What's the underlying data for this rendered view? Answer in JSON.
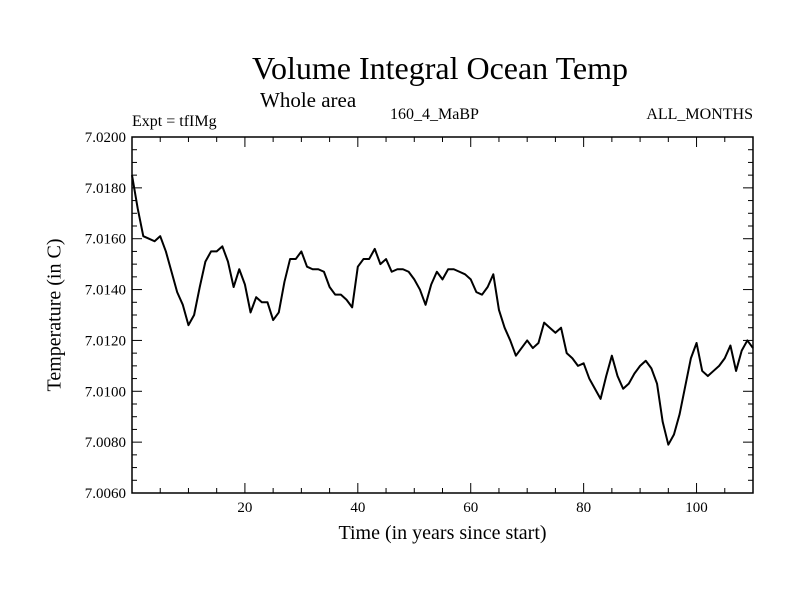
{
  "chart_data": {
    "type": "line",
    "title": "Volume Integral Ocean Temp",
    "subtitle": "Whole area",
    "annotations": {
      "expt": "Expt = tfIMg",
      "run": "160_4_MaBP",
      "months": "ALL_MONTHS"
    },
    "xlabel": "Time (in years since start)",
    "ylabel": "Temperature (in C)",
    "xlim": [
      0,
      110
    ],
    "ylim": [
      7.006,
      7.02
    ],
    "xticks": [
      20,
      40,
      60,
      80,
      100
    ],
    "xtick_labels": [
      "20",
      "40",
      "60",
      "80",
      "100"
    ],
    "yticks": [
      7.006,
      7.008,
      7.01,
      7.012,
      7.014,
      7.016,
      7.018,
      7.02
    ],
    "ytick_labels": [
      "7.0060",
      "7.0080",
      "7.0100",
      "7.0120",
      "7.0140",
      "7.0160",
      "7.0180",
      "7.0200"
    ],
    "series": [
      {
        "name": "Volume integral ocean temperature",
        "x": [
          0,
          1,
          2,
          3,
          4,
          5,
          6,
          7,
          8,
          9,
          10,
          11,
          12,
          13,
          14,
          15,
          16,
          17,
          18,
          19,
          20,
          21,
          22,
          23,
          24,
          25,
          26,
          27,
          28,
          29,
          30,
          31,
          32,
          33,
          34,
          35,
          36,
          37,
          38,
          39,
          40,
          41,
          42,
          43,
          44,
          45,
          46,
          47,
          48,
          49,
          50,
          51,
          52,
          53,
          54,
          55,
          56,
          57,
          58,
          59,
          60,
          61,
          62,
          63,
          64,
          65,
          66,
          67,
          68,
          69,
          70,
          71,
          72,
          73,
          74,
          75,
          76,
          77,
          78,
          79,
          80,
          81,
          82,
          83,
          84,
          85,
          86,
          87,
          88,
          89,
          90,
          91,
          92,
          93,
          94,
          95,
          96,
          97,
          98,
          99,
          100,
          101,
          102,
          103,
          104,
          105,
          106,
          107,
          108,
          109,
          110
        ],
        "y": [
          7.0185,
          7.0172,
          7.0161,
          7.016,
          7.0159,
          7.0161,
          7.0155,
          7.0147,
          7.0139,
          7.0134,
          7.0126,
          7.013,
          7.0141,
          7.0151,
          7.0155,
          7.0155,
          7.0157,
          7.0151,
          7.0141,
          7.0148,
          7.0142,
          7.0131,
          7.0137,
          7.0135,
          7.0135,
          7.0128,
          7.0131,
          7.0143,
          7.0152,
          7.0152,
          7.0155,
          7.0149,
          7.0148,
          7.0148,
          7.0147,
          7.0141,
          7.0138,
          7.0138,
          7.0136,
          7.0133,
          7.0149,
          7.0152,
          7.0152,
          7.0156,
          7.015,
          7.0152,
          7.0147,
          7.0148,
          7.0148,
          7.0147,
          7.0144,
          7.014,
          7.0134,
          7.0142,
          7.0147,
          7.0144,
          7.0148,
          7.0148,
          7.0147,
          7.0146,
          7.0144,
          7.0139,
          7.0138,
          7.0141,
          7.0146,
          7.0132,
          7.0125,
          7.012,
          7.0114,
          7.0117,
          7.012,
          7.0117,
          7.0119,
          7.0127,
          7.0125,
          7.0123,
          7.0125,
          7.0115,
          7.0113,
          7.011,
          7.0111,
          7.0105,
          7.0101,
          7.0097,
          7.0106,
          7.0114,
          7.0106,
          7.0101,
          7.0103,
          7.0107,
          7.011,
          7.0112,
          7.0109,
          7.0103,
          7.0088,
          7.0079,
          7.0083,
          7.0091,
          7.0102,
          7.0113,
          7.0119,
          7.0108,
          7.0106,
          7.0108,
          7.011,
          7.0113,
          7.0118,
          7.0108,
          7.0116,
          7.012,
          7.0117
        ]
      }
    ]
  }
}
